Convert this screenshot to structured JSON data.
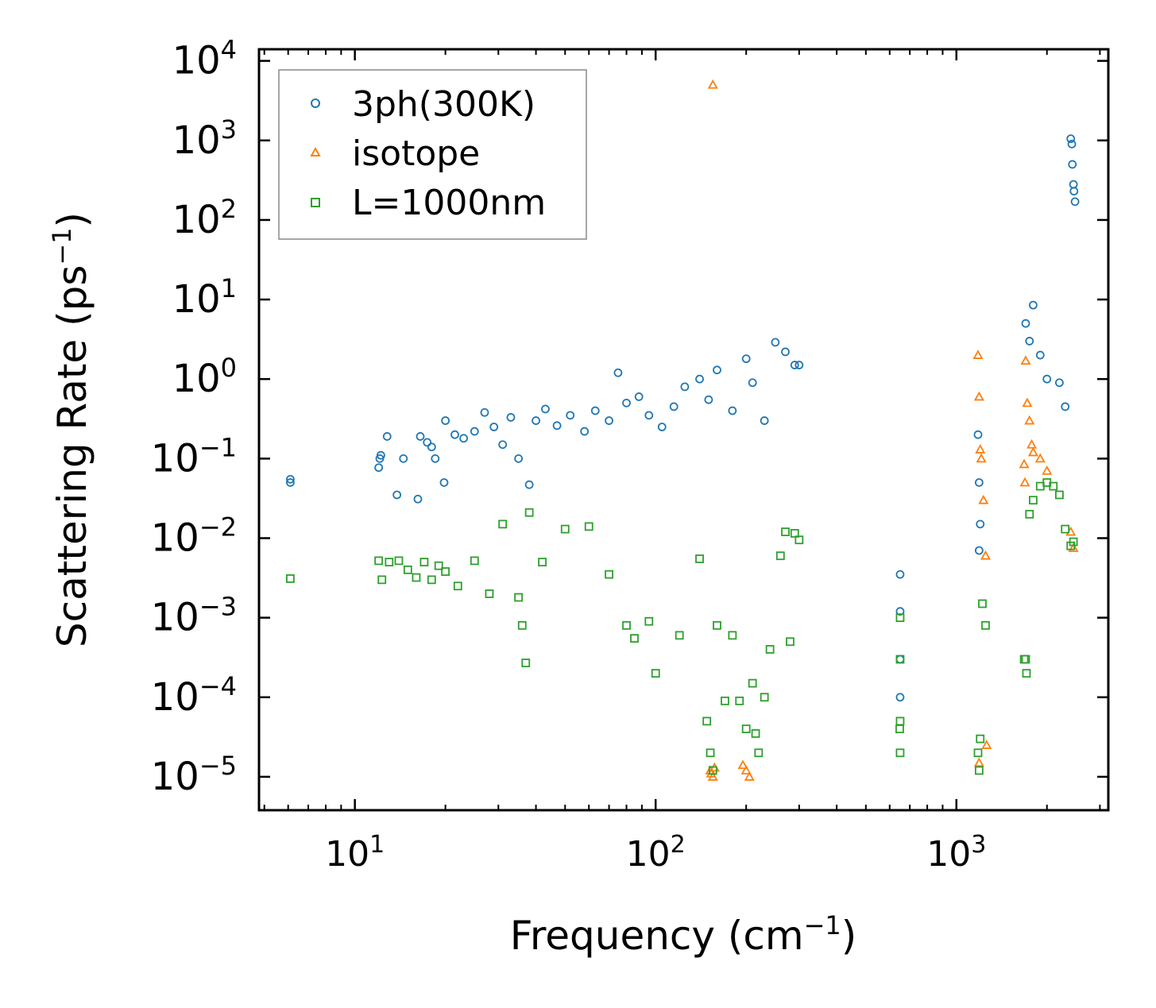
{
  "chart_data": {
    "type": "scatter",
    "x_scale": "log",
    "y_scale": "log",
    "xlabel": "Frequency (cm",
    "xlabel_sup": "−1",
    "xlabel_end": ")",
    "ylabel": "Scattering Rate (ps",
    "ylabel_sup": "−1",
    "ylabel_end": ")",
    "xlim": [
      4.8,
      3200
    ],
    "ylim": [
      3.8e-06,
      14000
    ],
    "x_ticks": [
      {
        "value": 10,
        "base": "10",
        "exp": "1"
      },
      {
        "value": 100,
        "base": "10",
        "exp": "2"
      },
      {
        "value": 1000,
        "base": "10",
        "exp": "3"
      }
    ],
    "y_ticks": [
      {
        "value": 1e-05,
        "base": "10",
        "exp": "−5"
      },
      {
        "value": 0.0001,
        "base": "10",
        "exp": "−4"
      },
      {
        "value": 0.001,
        "base": "10",
        "exp": "−3"
      },
      {
        "value": 0.01,
        "base": "10",
        "exp": "−2"
      },
      {
        "value": 0.1,
        "base": "10",
        "exp": "−1"
      },
      {
        "value": 1,
        "base": "10",
        "exp": "0"
      },
      {
        "value": 10,
        "base": "10",
        "exp": "1"
      },
      {
        "value": 100,
        "base": "10",
        "exp": "2"
      },
      {
        "value": 1000,
        "base": "10",
        "exp": "3"
      },
      {
        "value": 10000,
        "base": "10",
        "exp": "4"
      }
    ],
    "legend_position": "top-left",
    "series": [
      {
        "name": "3ph(300K)",
        "marker": "circle",
        "color": "#1f77b4",
        "points": [
          [
            6.1,
            0.055
          ],
          [
            6.1,
            0.05
          ],
          [
            12.2,
            0.11
          ],
          [
            12.1,
            0.1
          ],
          [
            12.0,
            0.077
          ],
          [
            12.8,
            0.19
          ],
          [
            14.5,
            0.1
          ],
          [
            13.8,
            0.035
          ],
          [
            16.2,
            0.031
          ],
          [
            16.5,
            0.19
          ],
          [
            17.4,
            0.16
          ],
          [
            18.0,
            0.14
          ],
          [
            18.5,
            0.1
          ],
          [
            19.8,
            0.05
          ],
          [
            20.0,
            0.3
          ],
          [
            21.5,
            0.2
          ],
          [
            23.0,
            0.18
          ],
          [
            25.0,
            0.22
          ],
          [
            27.0,
            0.38
          ],
          [
            29.0,
            0.25
          ],
          [
            31.0,
            0.15
          ],
          [
            33.0,
            0.33
          ],
          [
            35.0,
            0.1
          ],
          [
            38.0,
            0.047
          ],
          [
            40.0,
            0.3
          ],
          [
            43.0,
            0.42
          ],
          [
            47.0,
            0.26
          ],
          [
            52.0,
            0.35
          ],
          [
            58.0,
            0.22
          ],
          [
            63.0,
            0.4
          ],
          [
            70.0,
            0.3
          ],
          [
            75.0,
            1.2
          ],
          [
            80.0,
            0.5
          ],
          [
            88.0,
            0.6
          ],
          [
            95.0,
            0.35
          ],
          [
            105.0,
            0.25
          ],
          [
            115.0,
            0.45
          ],
          [
            125.0,
            0.8
          ],
          [
            140.0,
            1.0
          ],
          [
            150.0,
            0.55
          ],
          [
            160.0,
            1.3
          ],
          [
            180.0,
            0.4
          ],
          [
            200.0,
            1.8
          ],
          [
            210.0,
            0.9
          ],
          [
            230.0,
            0.3
          ],
          [
            250.0,
            2.9
          ],
          [
            270.0,
            2.2
          ],
          [
            290.0,
            1.5
          ],
          [
            300.0,
            1.5
          ],
          [
            650.0,
            0.0035
          ],
          [
            650.0,
            0.0012
          ],
          [
            650.0,
            0.0003
          ],
          [
            650.0,
            0.0001
          ],
          [
            1180.0,
            0.2
          ],
          [
            1190.0,
            0.05
          ],
          [
            1200.0,
            0.015
          ],
          [
            1190.0,
            0.007
          ],
          [
            1700.0,
            5.0
          ],
          [
            1750.0,
            3.0
          ],
          [
            1800.0,
            8.5
          ],
          [
            1900.0,
            2.0
          ],
          [
            2000.0,
            1.0
          ],
          [
            2200.0,
            0.9
          ],
          [
            2300.0,
            0.45
          ],
          [
            2400.0,
            1050
          ],
          [
            2420.0,
            900
          ],
          [
            2430.0,
            500
          ],
          [
            2450.0,
            280
          ],
          [
            2460.0,
            230
          ],
          [
            2480.0,
            170
          ]
        ]
      },
      {
        "name": "isotope",
        "marker": "triangle",
        "color": "#ff7f0e",
        "points": [
          [
            155.0,
            5000
          ],
          [
            152.0,
            1.2e-05
          ],
          [
            153.0,
            1.1e-05
          ],
          [
            155.0,
            1e-05
          ],
          [
            157.0,
            1.3e-05
          ],
          [
            195.0,
            1.4e-05
          ],
          [
            200.0,
            1.2e-05
          ],
          [
            205.0,
            1e-05
          ],
          [
            1180.0,
            2.0
          ],
          [
            1190.0,
            0.6
          ],
          [
            1200.0,
            0.13
          ],
          [
            1210.0,
            0.1
          ],
          [
            1230.0,
            0.03
          ],
          [
            1250.0,
            0.006
          ],
          [
            1260.0,
            2.5e-05
          ],
          [
            1190.0,
            1.5e-05
          ],
          [
            1700.0,
            1.7
          ],
          [
            1720.0,
            0.5
          ],
          [
            1750.0,
            0.3
          ],
          [
            1780.0,
            0.15
          ],
          [
            1800.0,
            0.12
          ],
          [
            1680.0,
            0.085
          ],
          [
            1690.0,
            0.05
          ],
          [
            1900.0,
            0.1
          ],
          [
            2000.0,
            0.07
          ],
          [
            2400.0,
            0.012
          ],
          [
            2450.0,
            0.0075
          ]
        ]
      },
      {
        "name": "L=1000nm",
        "marker": "square",
        "color": "#2ca02c",
        "points": [
          [
            6.1,
            0.0031
          ],
          [
            12.0,
            0.0052
          ],
          [
            12.3,
            0.003
          ],
          [
            13.0,
            0.005
          ],
          [
            14.0,
            0.0052
          ],
          [
            15.0,
            0.004
          ],
          [
            16.0,
            0.0032
          ],
          [
            17.0,
            0.005
          ],
          [
            18.0,
            0.003
          ],
          [
            19.0,
            0.0045
          ],
          [
            20.0,
            0.0038
          ],
          [
            22.0,
            0.0025
          ],
          [
            25.0,
            0.0052
          ],
          [
            28.0,
            0.002
          ],
          [
            31.0,
            0.015
          ],
          [
            35.0,
            0.0018
          ],
          [
            36.0,
            0.0008
          ],
          [
            37.0,
            0.00027
          ],
          [
            38.0,
            0.021
          ],
          [
            42.0,
            0.005
          ],
          [
            50.0,
            0.013
          ],
          [
            60.0,
            0.014
          ],
          [
            70.0,
            0.0035
          ],
          [
            80.0,
            0.0008
          ],
          [
            85.0,
            0.00055
          ],
          [
            95.0,
            0.0009
          ],
          [
            100.0,
            0.0002
          ],
          [
            120.0,
            0.0006
          ],
          [
            140.0,
            0.0055
          ],
          [
            148.0,
            5e-05
          ],
          [
            152.0,
            2e-05
          ],
          [
            155.0,
            1.2e-05
          ],
          [
            160.0,
            0.0008
          ],
          [
            170.0,
            9e-05
          ],
          [
            180.0,
            0.0006
          ],
          [
            190.0,
            9e-05
          ],
          [
            200.0,
            4e-05
          ],
          [
            210.0,
            0.00015
          ],
          [
            215.0,
            3.5e-05
          ],
          [
            220.0,
            2e-05
          ],
          [
            230.0,
            0.0001
          ],
          [
            240.0,
            0.0004
          ],
          [
            260.0,
            0.006
          ],
          [
            270.0,
            0.012
          ],
          [
            280.0,
            0.0005
          ],
          [
            290.0,
            0.0115
          ],
          [
            300.0,
            0.0095
          ],
          [
            650.0,
            0.001
          ],
          [
            650.0,
            0.0003
          ],
          [
            650.0,
            5e-05
          ],
          [
            648.0,
            4e-05
          ],
          [
            650.0,
            2e-05
          ],
          [
            1180.0,
            2e-05
          ],
          [
            1190.0,
            1.2e-05
          ],
          [
            1200.0,
            3e-05
          ],
          [
            1220.0,
            0.0015
          ],
          [
            1250.0,
            0.0008
          ],
          [
            1680.0,
            0.0003
          ],
          [
            1700.0,
            0.0003
          ],
          [
            1710.0,
            0.0002
          ],
          [
            1750.0,
            0.02
          ],
          [
            1800.0,
            0.03
          ],
          [
            1900.0,
            0.045
          ],
          [
            2000.0,
            0.05
          ],
          [
            2100.0,
            0.045
          ],
          [
            2200.0,
            0.035
          ],
          [
            2300.0,
            0.013
          ],
          [
            2400.0,
            0.008
          ],
          [
            2450.0,
            0.009
          ]
        ]
      }
    ]
  }
}
